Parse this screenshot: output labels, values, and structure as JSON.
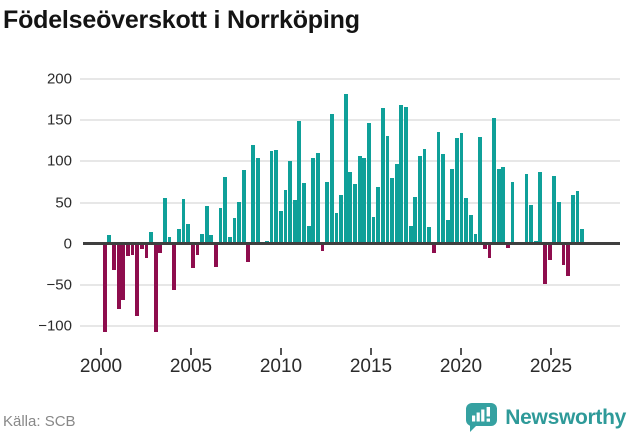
{
  "title": "Födelseöverskott i Norrköping",
  "source_note": "Källa: SCB",
  "brand": {
    "name": "Newsworthy"
  },
  "colors": {
    "positive": "#0fa099",
    "negative": "#8e0d4d",
    "zero_line": "#3f3f3f",
    "gridline": "#e7e7e7",
    "brand_teal": "#2e9a99",
    "title_text": "#141414",
    "axis_text": "#2b2b2b",
    "source_text": "#888888"
  },
  "chart_data": {
    "type": "bar",
    "title": "Födelseöverskott i Norrköping",
    "xlabel": "",
    "ylabel": "",
    "grid": true,
    "legend": "none",
    "ylim": [
      -128,
      215
    ],
    "ytick_values": [
      200,
      150,
      100,
      50,
      0,
      -50,
      -100
    ],
    "ytick_labels": [
      "200",
      "150",
      "100",
      "50",
      "0",
      "−50",
      "−100"
    ],
    "xtick_labels": [
      "2000",
      "2005",
      "2010",
      "2015",
      "2020",
      "2025"
    ],
    "series_name": "Födelseöverskott per kvartal",
    "x": [
      "2000 Q1",
      "2000 Q2",
      "2000 Q3",
      "2000 Q4",
      "2001 Q1",
      "2001 Q2",
      "2001 Q3",
      "2001 Q4",
      "2002 Q1",
      "2002 Q2",
      "2002 Q3",
      "2002 Q4",
      "2003 Q1",
      "2003 Q2",
      "2003 Q3",
      "2003 Q4",
      "2004 Q1",
      "2004 Q2",
      "2004 Q3",
      "2004 Q4",
      "2005 Q1",
      "2005 Q2",
      "2005 Q3",
      "2005 Q4",
      "2006 Q1",
      "2006 Q2",
      "2006 Q3",
      "2006 Q4",
      "2007 Q1",
      "2007 Q2",
      "2007 Q3",
      "2007 Q4",
      "2008 Q1",
      "2008 Q2",
      "2008 Q3",
      "2008 Q4",
      "2009 Q1",
      "2009 Q2",
      "2009 Q3",
      "2009 Q4",
      "2010 Q1",
      "2010 Q2",
      "2010 Q3",
      "2010 Q4",
      "2011 Q1",
      "2011 Q2",
      "2011 Q3",
      "2011 Q4",
      "2012 Q1",
      "2012 Q2",
      "2012 Q3",
      "2012 Q4",
      "2013 Q1",
      "2013 Q2",
      "2013 Q3",
      "2013 Q4",
      "2014 Q1",
      "2014 Q2",
      "2014 Q3",
      "2014 Q4",
      "2015 Q1",
      "2015 Q2",
      "2015 Q3",
      "2015 Q4",
      "2016 Q1",
      "2016 Q2",
      "2016 Q3",
      "2016 Q4",
      "2017 Q1",
      "2017 Q2",
      "2017 Q3",
      "2017 Q4",
      "2018 Q1",
      "2018 Q2",
      "2018 Q3",
      "2018 Q4",
      "2019 Q1",
      "2019 Q2",
      "2019 Q3",
      "2019 Q4",
      "2020 Q1",
      "2020 Q2",
      "2020 Q3",
      "2020 Q4",
      "2021 Q1",
      "2021 Q2",
      "2021 Q3",
      "2021 Q4",
      "2022 Q1",
      "2022 Q2",
      "2022 Q3",
      "2022 Q4",
      "2023 Q1",
      "2023 Q2",
      "2023 Q3",
      "2023 Q4",
      "2024 Q1",
      "2024 Q2",
      "2024 Q3",
      "2024 Q4",
      "2025 Q1",
      "2025 Q2",
      "2025 Q3",
      "2025 Q4"
    ],
    "values": [
      -106,
      11,
      -30,
      -78,
      -66,
      -13,
      -12,
      -86,
      -5,
      -16,
      14,
      -106,
      -10,
      56,
      8,
      -54,
      18,
      54,
      24,
      -28,
      -12,
      12,
      46,
      11,
      -26,
      43,
      81,
      8,
      31,
      51,
      90,
      -20,
      120,
      104,
      1,
      3,
      113,
      114,
      40,
      65,
      100,
      53,
      149,
      74,
      22,
      104,
      110,
      -7,
      75,
      157,
      37,
      59,
      182,
      87,
      73,
      107,
      104,
      147,
      32,
      69,
      165,
      131,
      80,
      97,
      169,
      166,
      21,
      57,
      107,
      115,
      20,
      -10,
      136,
      109,
      29,
      91,
      129,
      135,
      55,
      35,
      12,
      130,
      -5,
      -16,
      153,
      91,
      93,
      -4,
      75,
      2,
      0,
      85,
      47,
      3,
      87,
      -47,
      -18,
      82,
      51,
      -24,
      -37,
      59,
      64,
      18
    ]
  }
}
